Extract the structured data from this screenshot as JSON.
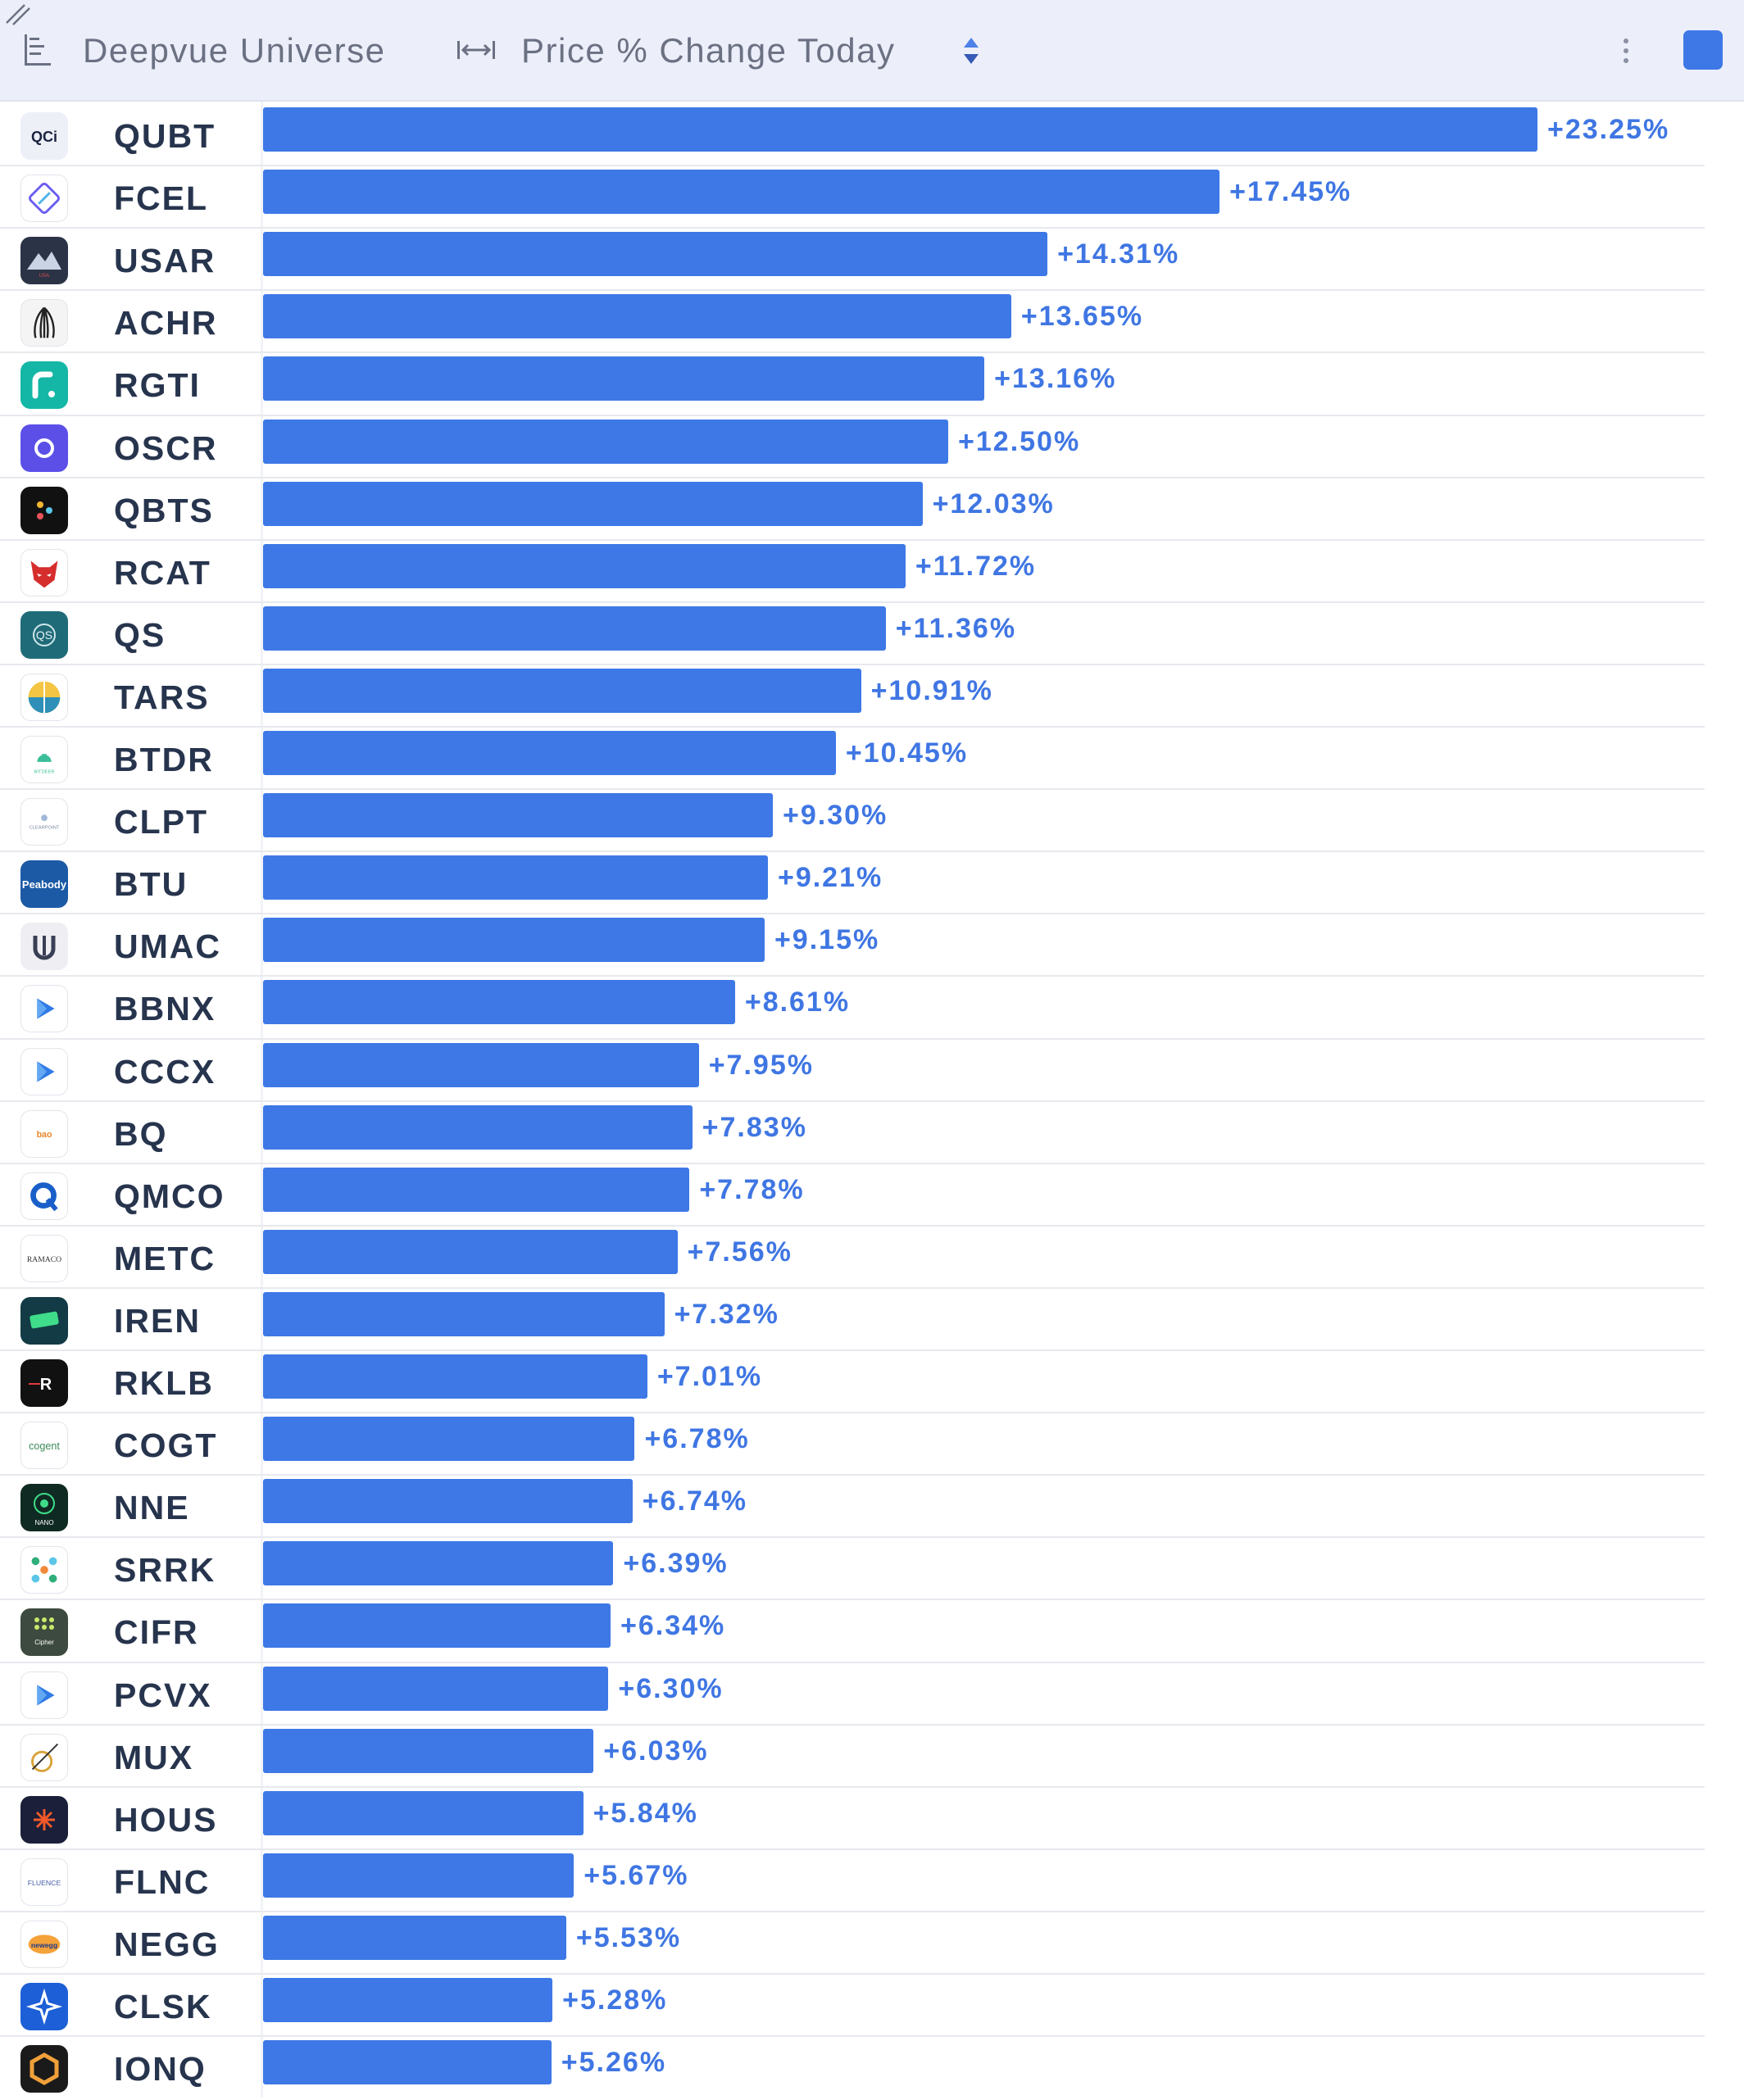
{
  "header": {
    "universe_label": "Deepvue Universe",
    "metric_label": "Price % Change Today"
  },
  "colors": {
    "bar": "#3d78e6",
    "value_text": "#3f76e3",
    "swatch": "#3d78e6"
  },
  "chart_data": {
    "type": "bar",
    "orientation": "horizontal",
    "xlim": [
      0,
      23.25
    ],
    "categories": [
      "QUBT",
      "FCEL",
      "USAR",
      "ACHR",
      "RGTI",
      "OSCR",
      "QBTS",
      "RCAT",
      "QS",
      "TARS",
      "BTDR",
      "CLPT",
      "BTU",
      "UMAC",
      "BBNX",
      "CCCX",
      "BQ",
      "QMCO",
      "METC",
      "IREN",
      "RKLB",
      "COGT",
      "NNE",
      "SRRK",
      "CIFR",
      "PCVX",
      "MUX",
      "HOUS",
      "FLNC",
      "NEGG",
      "CLSK",
      "IONQ"
    ],
    "values": [
      23.25,
      17.45,
      14.31,
      13.65,
      13.16,
      12.5,
      12.03,
      11.72,
      11.36,
      10.91,
      10.45,
      9.3,
      9.21,
      9.15,
      8.61,
      7.95,
      7.83,
      7.78,
      7.56,
      7.32,
      7.01,
      6.78,
      6.74,
      6.39,
      6.34,
      6.3,
      6.03,
      5.84,
      5.67,
      5.53,
      5.28,
      5.26
    ],
    "labels": [
      "+23.25%",
      "+17.45%",
      "+14.31%",
      "+13.65%",
      "+13.16%",
      "+12.50%",
      "+12.03%",
      "+11.72%",
      "+11.36%",
      "+10.91%",
      "+10.45%",
      "+9.30%",
      "+9.21%",
      "+9.15%",
      "+8.61%",
      "+7.95%",
      "+7.83%",
      "+7.78%",
      "+7.56%",
      "+7.32%",
      "+7.01%",
      "+6.78%",
      "+6.74%",
      "+6.39%",
      "+6.34%",
      "+6.30%",
      "+6.03%",
      "+5.84%",
      "+5.67%",
      "+5.53%",
      "+5.28%",
      "+5.26%"
    ],
    "logo_icons": [
      "qci-logo-icon",
      "fcel-logo-icon",
      "usar-logo-icon",
      "achr-logo-icon",
      "rgti-logo-icon",
      "oscr-logo-icon",
      "qbts-logo-icon",
      "rcat-logo-icon",
      "qs-logo-icon",
      "tars-logo-icon",
      "btdr-logo-icon",
      "clpt-logo-icon",
      "btu-logo-icon",
      "umac-logo-icon",
      "bbnx-logo-icon",
      "cccx-logo-icon",
      "bq-logo-icon",
      "qmco-logo-icon",
      "metc-logo-icon",
      "iren-logo-icon",
      "rklb-logo-icon",
      "cogt-logo-icon",
      "nne-logo-icon",
      "srrk-logo-icon",
      "cifr-logo-icon",
      "pcvx-logo-icon",
      "mux-logo-icon",
      "hous-logo-icon",
      "flnc-logo-icon",
      "negg-logo-icon",
      "clsk-logo-icon",
      "ionq-logo-icon"
    ],
    "logo_colors": [
      "#eef0f7",
      "#ffffff",
      "#2b3447",
      "#f4f4f4",
      "#14b7a6",
      "#5b4fe8",
      "#111111",
      "#ffffff",
      "#1f6b78",
      "#ffffff",
      "#ffffff",
      "#ffffff",
      "#1c5aa6",
      "#efeef3",
      "#ffffff",
      "#ffffff",
      "#ffffff",
      "#ffffff",
      "#ffffff",
      "#123b45",
      "#111111",
      "#ffffff",
      "#0f2a22",
      "#ffffff",
      "#3d4a3f",
      "#ffffff",
      "#ffffff",
      "#1b1f3a",
      "#ffffff",
      "#ffffff",
      "#1d5fd6",
      "#1a1a1a"
    ]
  }
}
